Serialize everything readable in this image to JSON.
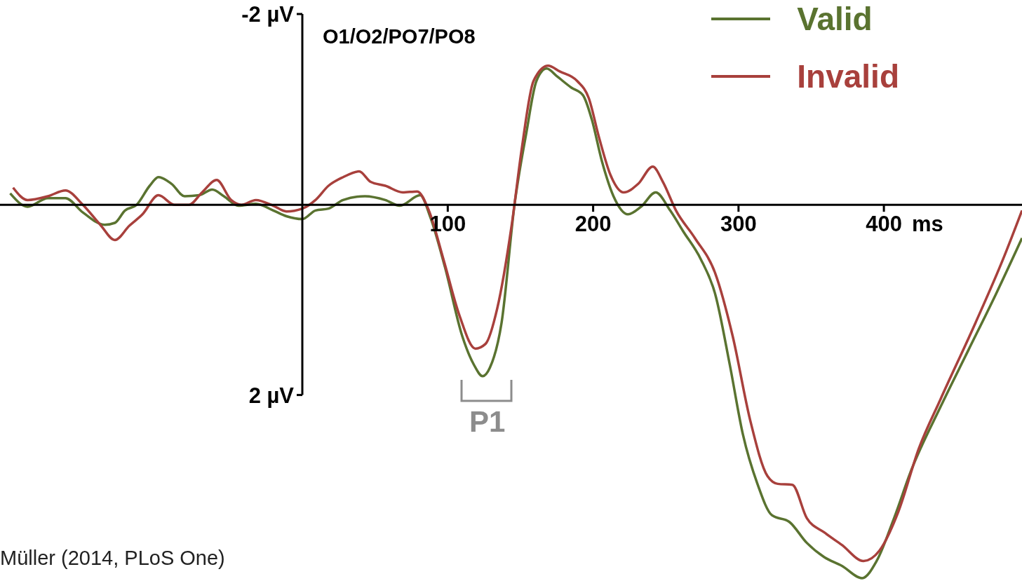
{
  "chart_data": {
    "type": "line",
    "title": "O1/O2/PO7/PO8",
    "xlabel": "ms",
    "xlim": [
      -208,
      495
    ],
    "ylim": [
      3.95,
      -2.15
    ],
    "xticks": [
      100,
      200,
      300,
      400
    ],
    "yticks": [
      {
        "value": -2,
        "label": "-2 µV"
      },
      {
        "value": 2,
        "label": "2 µV"
      }
    ],
    "legend": "top right",
    "marker": "none",
    "line_style": "solid",
    "annotations": [
      "P1",
      "Müller (2014, PLoS One)"
    ],
    "series": [
      {
        "name": "Valid",
        "color": "#5a7330",
        "x": [
          -201,
          -189,
          -175,
          -163,
          -151,
          -136,
          -129,
          -122,
          -114,
          -105,
          -99,
          -90,
          -81,
          -71,
          -62,
          -54,
          -44,
          -32,
          -20,
          -11,
          0,
          9,
          18,
          28,
          43,
          57,
          67,
          81,
          88,
          98,
          110,
          118,
          124,
          129,
          137,
          146,
          154,
          161,
          168,
          175,
          185,
          193,
          199,
          206,
          214,
          224,
          233,
          243,
          253,
          262,
          274,
          284,
          294,
          303,
          313,
          323,
          335,
          347,
          359,
          371,
          385,
          395,
          407,
          419,
          439,
          458,
          477,
          495
        ],
        "values": [
          -0.12,
          0.02,
          -0.07,
          -0.07,
          0.08,
          0.21,
          0.19,
          0.06,
          0,
          -0.2,
          -0.29,
          -0.22,
          -0.09,
          -0.1,
          -0.16,
          -0.09,
          0.01,
          -0.01,
          0.06,
          0.12,
          0.15,
          0.06,
          0.04,
          -0.05,
          -0.09,
          -0.05,
          0.01,
          -0.1,
          0.13,
          0.65,
          1.38,
          1.68,
          1.8,
          1.71,
          1.24,
          -0.01,
          -0.75,
          -1.3,
          -1.43,
          -1.35,
          -1.23,
          -1.15,
          -0.9,
          -0.46,
          -0.09,
          0.1,
          0.02,
          -0.13,
          0.06,
          0.28,
          0.57,
          0.94,
          1.68,
          2.41,
          2.93,
          3.26,
          3.33,
          3.55,
          3.7,
          3.79,
          3.92,
          3.74,
          3.29,
          2.78,
          2.12,
          1.53,
          0.94,
          0.35
        ]
      },
      {
        "name": "Invalid",
        "color": "#a8403c",
        "x": [
          -199,
          -189,
          -175,
          -163,
          -151,
          -139,
          -129,
          -119,
          -110,
          -99,
          -88,
          -78,
          -69,
          -59,
          -49,
          -42,
          -32,
          -20,
          -11,
          0,
          9,
          18,
          28,
          39,
          47,
          57,
          69,
          79,
          87,
          97,
          108,
          119,
          126,
          134,
          144,
          151,
          159,
          169,
          177,
          189,
          197,
          204,
          212,
          221,
          231,
          241,
          248,
          257,
          270,
          284,
          296,
          308,
          320,
          327,
          337,
          347,
          359,
          371,
          386,
          397,
          410,
          424,
          439,
          463,
          482,
          495
        ],
        "values": [
          -0.18,
          -0.05,
          -0.09,
          -0.15,
          0,
          0.21,
          0.37,
          0.22,
          0.1,
          -0.1,
          0,
          0,
          -0.13,
          -0.26,
          -0.05,
          0,
          -0.05,
          0.01,
          0.07,
          0.04,
          -0.05,
          -0.2,
          -0.29,
          -0.35,
          -0.24,
          -0.2,
          -0.13,
          -0.14,
          0.06,
          0.57,
          1.16,
          1.51,
          1.46,
          1.09,
          0.21,
          -0.6,
          -1.3,
          -1.46,
          -1.4,
          -1.3,
          -1.12,
          -0.71,
          -0.31,
          -0.13,
          -0.22,
          -0.4,
          -0.24,
          0.06,
          0.35,
          0.72,
          1.38,
          2.26,
          2.85,
          2.93,
          2.94,
          3.29,
          3.44,
          3.57,
          3.74,
          3.63,
          3.22,
          2.56,
          2.04,
          1.24,
          0.57,
          0.06
        ]
      }
    ]
  }
}
